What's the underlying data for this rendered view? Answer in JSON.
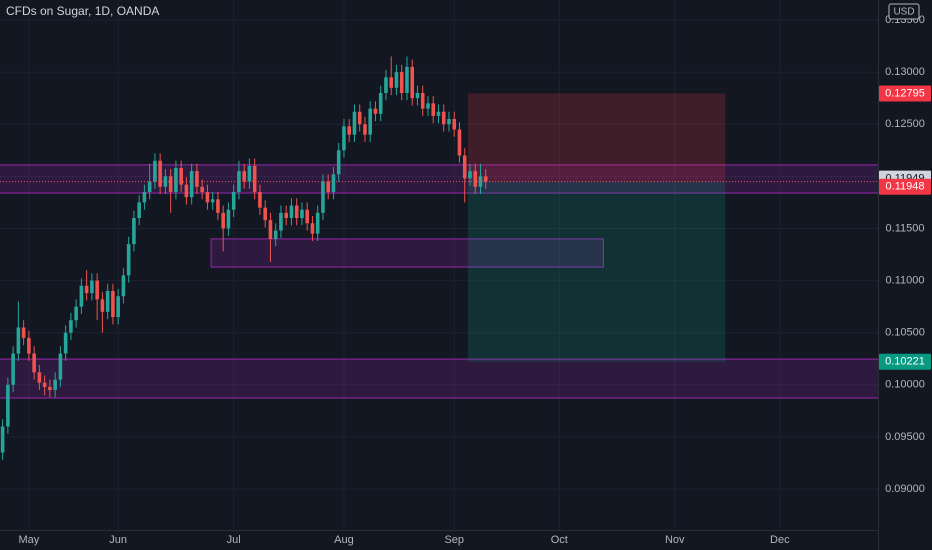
{
  "chart_data": {
    "type": "candlestick",
    "title": "CFDs on Sugar, 1D, OANDA",
    "currency": "USD",
    "up_color": "#26a69a",
    "down_color": "#ef5350",
    "x": [
      0,
      1,
      2,
      3,
      4,
      5,
      6,
      7,
      8,
      9,
      10,
      11,
      12,
      13,
      14,
      15,
      16,
      17,
      18,
      19,
      20,
      21,
      22,
      23,
      24,
      25,
      26,
      27,
      28,
      29,
      30,
      31,
      32,
      33,
      34,
      35,
      36,
      37,
      38,
      39,
      40,
      41,
      42,
      43,
      44,
      45,
      46,
      47,
      48,
      49,
      50,
      51,
      52,
      53,
      54,
      55,
      56,
      57,
      58,
      59,
      60,
      61,
      62,
      63,
      64,
      65,
      66,
      67,
      68,
      69,
      70,
      71,
      72,
      73,
      74,
      75,
      76,
      77,
      78,
      79,
      80,
      81,
      82,
      83,
      84,
      85,
      86,
      87,
      88,
      89,
      90,
      91,
      92
    ],
    "open": [
      0.0935,
      0.096,
      0.1,
      0.103,
      0.1055,
      0.1045,
      0.103,
      0.1012,
      0.1002,
      0.0998,
      0.0995,
      0.1005,
      0.103,
      0.105,
      0.1062,
      0.1075,
      0.1095,
      0.1088,
      0.11,
      0.1082,
      0.107,
      0.109,
      0.1065,
      0.1085,
      0.1105,
      0.1135,
      0.116,
      0.1175,
      0.1185,
      0.1195,
      0.1215,
      0.119,
      0.12,
      0.1185,
      0.1208,
      0.1192,
      0.118,
      0.1205,
      0.119,
      0.1185,
      0.1175,
      0.1178,
      0.1165,
      0.115,
      0.1168,
      0.1185,
      0.1205,
      0.1195,
      0.121,
      0.1185,
      0.117,
      0.1158,
      0.114,
      0.1148,
      0.1165,
      0.116,
      0.1172,
      0.116,
      0.1168,
      0.1155,
      0.1145,
      0.1165,
      0.1195,
      0.1185,
      0.1202,
      0.1225,
      0.1248,
      0.124,
      0.1262,
      0.125,
      0.124,
      0.1265,
      0.126,
      0.128,
      0.1295,
      0.1285,
      0.13,
      0.128,
      0.1305,
      0.1275,
      0.128,
      0.1265,
      0.127,
      0.1258,
      0.1262,
      0.125,
      0.1255,
      0.1245,
      0.122,
      0.1198,
      0.1205,
      0.119,
      0.12
    ],
    "high": [
      0.0967,
      0.1007,
      0.1037,
      0.108,
      0.1062,
      0.1052,
      0.1037,
      0.1019,
      0.1009,
      0.1005,
      0.1012,
      0.1037,
      0.1057,
      0.1069,
      0.1082,
      0.1102,
      0.111,
      0.1107,
      0.1107,
      0.1089,
      0.1097,
      0.1097,
      0.1092,
      0.1112,
      0.1142,
      0.1167,
      0.1182,
      0.1192,
      0.1212,
      0.1222,
      0.1222,
      0.1207,
      0.1207,
      0.1215,
      0.1215,
      0.1199,
      0.1212,
      0.1212,
      0.1197,
      0.1192,
      0.1185,
      0.1185,
      0.1172,
      0.1175,
      0.1192,
      0.1215,
      0.1212,
      0.1217,
      0.1217,
      0.1192,
      0.1177,
      0.1165,
      0.1155,
      0.1172,
      0.1172,
      0.1179,
      0.1179,
      0.1175,
      0.1175,
      0.1162,
      0.1172,
      0.1202,
      0.1202,
      0.1209,
      0.1232,
      0.1255,
      0.1255,
      0.1269,
      0.1269,
      0.1257,
      0.1272,
      0.1272,
      0.1287,
      0.1302,
      0.1315,
      0.1307,
      0.1307,
      0.1315,
      0.1312,
      0.1287,
      0.1287,
      0.1277,
      0.1277,
      0.1269,
      0.1269,
      0.1262,
      0.1262,
      0.1252,
      0.1227,
      0.1212,
      0.1212,
      0.1212,
      0.1207
    ],
    "low": [
      0.0928,
      0.0953,
      0.0993,
      0.1023,
      0.1038,
      0.1023,
      0.1005,
      0.0995,
      0.099,
      0.0988,
      0.0988,
      0.0998,
      0.1023,
      0.1043,
      0.1055,
      0.1068,
      0.1081,
      0.1081,
      0.1062,
      0.105,
      0.1063,
      0.1058,
      0.1058,
      0.1078,
      0.1098,
      0.1128,
      0.1153,
      0.1168,
      0.1178,
      0.1188,
      0.1183,
      0.1183,
      0.1165,
      0.1178,
      0.1185,
      0.1173,
      0.1173,
      0.1183,
      0.1178,
      0.1168,
      0.1168,
      0.1158,
      0.1128,
      0.1143,
      0.1161,
      0.1178,
      0.1188,
      0.1188,
      0.1178,
      0.1163,
      0.1151,
      0.1118,
      0.1133,
      0.1141,
      0.1153,
      0.1153,
      0.1153,
      0.1153,
      0.1148,
      0.1138,
      0.1138,
      0.1158,
      0.1178,
      0.1178,
      0.1195,
      0.1218,
      0.1233,
      0.1233,
      0.1243,
      0.1233,
      0.1233,
      0.1253,
      0.1253,
      0.1273,
      0.1278,
      0.1278,
      0.1273,
      0.1273,
      0.1268,
      0.1268,
      0.1258,
      0.1258,
      0.1251,
      0.1251,
      0.1243,
      0.1243,
      0.1238,
      0.1213,
      0.1175,
      0.1191,
      0.1183,
      0.1183,
      0.1188
    ],
    "close": [
      0.096,
      0.1,
      0.103,
      0.1055,
      0.1045,
      0.103,
      0.1012,
      0.1002,
      0.0998,
      0.0995,
      0.1005,
      0.103,
      0.105,
      0.1062,
      0.1075,
      0.1095,
      0.1088,
      0.11,
      0.1082,
      0.107,
      0.109,
      0.1065,
      0.1085,
      0.1105,
      0.1135,
      0.116,
      0.1175,
      0.1185,
      0.1195,
      0.1215,
      0.119,
      0.12,
      0.1185,
      0.1208,
      0.1192,
      0.118,
      0.1205,
      0.119,
      0.1185,
      0.1175,
      0.1178,
      0.1165,
      0.115,
      0.1168,
      0.1185,
      0.1205,
      0.1195,
      0.121,
      0.1185,
      0.117,
      0.1158,
      0.114,
      0.1148,
      0.1165,
      0.116,
      0.1172,
      0.116,
      0.1168,
      0.1155,
      0.1145,
      0.1165,
      0.1195,
      0.1185,
      0.1202,
      0.1225,
      0.1248,
      0.124,
      0.1262,
      0.125,
      0.124,
      0.1265,
      0.126,
      0.128,
      0.1295,
      0.1285,
      0.13,
      0.128,
      0.1305,
      0.1275,
      0.128,
      0.1265,
      0.127,
      0.1258,
      0.1262,
      0.125,
      0.1255,
      0.1245,
      0.122,
      0.1198,
      0.1205,
      0.119,
      0.12,
      0.11949
    ],
    "xlim": [
      -0.5,
      166.7
    ],
    "xticks": [
      {
        "value": 5,
        "label": "May"
      },
      {
        "value": 22,
        "label": "Jun"
      },
      {
        "value": 44,
        "label": "Jul"
      },
      {
        "value": 65,
        "label": "Aug"
      },
      {
        "value": 86,
        "label": "Sep"
      },
      {
        "value": 106,
        "label": "Oct"
      },
      {
        "value": 128,
        "label": "Nov"
      },
      {
        "value": 148,
        "label": "Dec"
      }
    ],
    "ylim": [
      0.08607,
      0.13692
    ],
    "yticks": [
      {
        "value": 0.135,
        "label": "0.13500"
      },
      {
        "value": 0.13,
        "label": "0.13000"
      },
      {
        "value": 0.125,
        "label": "0.12500"
      },
      {
        "value": 0.12,
        "label": "0.12000"
      },
      {
        "value": 0.115,
        "label": "0.11500"
      },
      {
        "value": 0.11,
        "label": "0.11000"
      },
      {
        "value": 0.105,
        "label": "0.10500"
      },
      {
        "value": 0.1,
        "label": "0.10000"
      },
      {
        "value": 0.095,
        "label": "0.09500"
      },
      {
        "value": 0.09,
        "label": "0.09000"
      }
    ],
    "grid": true,
    "zones": [
      {
        "y": [
          0.1184,
          0.1211
        ]
      },
      {
        "y": [
          0.1113,
          0.114
        ],
        "x": [
          39.7,
          114.4
        ]
      },
      {
        "y": [
          0.09873,
          0.10247
        ]
      }
    ],
    "position": {
      "x": [
        88.6,
        137.6
      ],
      "entry": 0.11949,
      "stop": 0.12795,
      "target": 0.10221
    },
    "price_labels": [
      {
        "value": 0.12795,
        "color": "#f23645"
      },
      {
        "value": 0.11949,
        "color": "#d1d4dc"
      },
      {
        "value": 0.11948,
        "color": "#f23645"
      },
      {
        "value": 0.10221,
        "color": "#089981"
      }
    ]
  }
}
